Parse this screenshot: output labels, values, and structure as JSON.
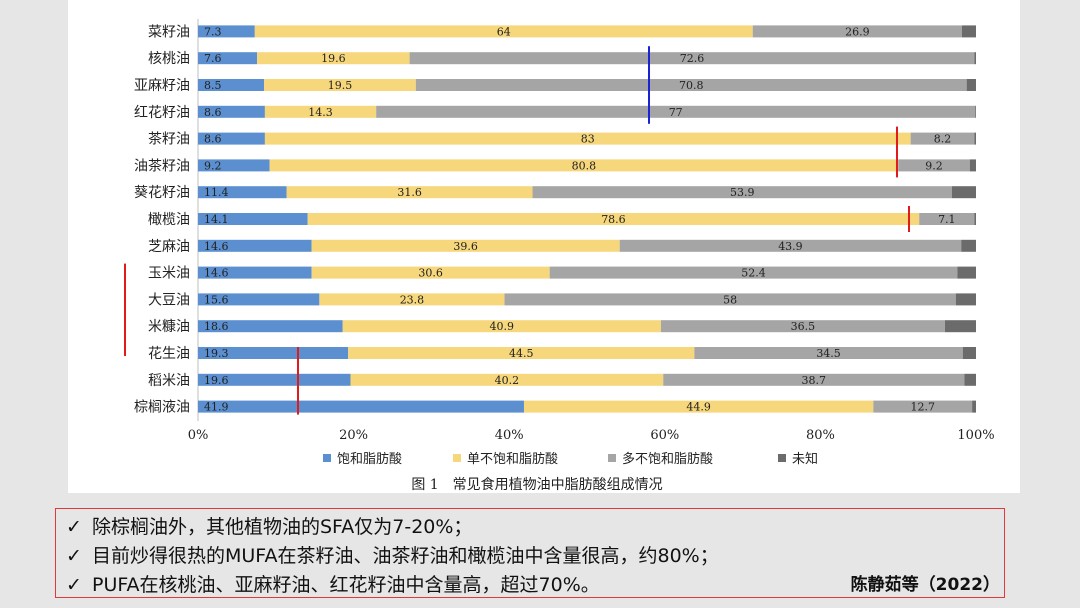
{
  "chart_data": {
    "type": "bar",
    "orientation": "horizontal",
    "stacked": true,
    "percent_stacked": true,
    "caption": "图 1　常见食用植物油中脂肪酸组成情况",
    "categories": [
      "菜籽油",
      "核桃油",
      "亚麻籽油",
      "红花籽油",
      "茶籽油",
      "油茶籽油",
      "葵花籽油",
      "橄榄油",
      "芝麻油",
      "玉米油",
      "大豆油",
      "米糠油",
      "花生油",
      "稻米油",
      "棕榈液油"
    ],
    "series": [
      {
        "name": "饱和脂肪酸",
        "color": "#5b8fcf",
        "values": [
          7.3,
          7.6,
          8.5,
          8.6,
          8.6,
          9.2,
          11.4,
          14.1,
          14.6,
          14.6,
          15.6,
          18.6,
          19.3,
          19.6,
          41.9
        ]
      },
      {
        "name": "单不饱和脂肪酸",
        "color": "#f7d77b",
        "values": [
          64,
          19.6,
          19.5,
          14.3,
          83,
          80.8,
          31.6,
          78.6,
          39.6,
          30.6,
          23.8,
          40.9,
          44.5,
          40.2,
          44.9
        ]
      },
      {
        "name": "多不饱和脂肪酸",
        "color": "#a5a5a5",
        "values": [
          26.9,
          72.6,
          70.8,
          77,
          8.2,
          9.2,
          53.9,
          7.1,
          43.9,
          52.4,
          58,
          36.5,
          34.5,
          38.7,
          12.7
        ]
      },
      {
        "name": "未知",
        "color": "#6b6b6b",
        "values": [
          1.8,
          0.2,
          1.2,
          0.1,
          0.2,
          0.8,
          3.1,
          0.2,
          1.9,
          2.4,
          2.6,
          4.0,
          1.7,
          1.5,
          0.5
        ]
      }
    ],
    "x_ticks": [
      "0%",
      "20%",
      "40%",
      "60%",
      "80%",
      "100%"
    ],
    "xlim": [
      0,
      100
    ],
    "legend_position": "bottom",
    "grid": false
  },
  "notes": {
    "check": "✓",
    "items": [
      "除棕榈油外，其他植物油的SFA仅为7-20%；",
      "目前炒得很热的MUFA在茶籽油、油茶籽油和橄榄油中含量很高，约80%；",
      "PUFA在核桃油、亚麻籽油、红花籽油中含量高，超过70%。"
    ],
    "citation": "陈静茹等（2022）"
  }
}
